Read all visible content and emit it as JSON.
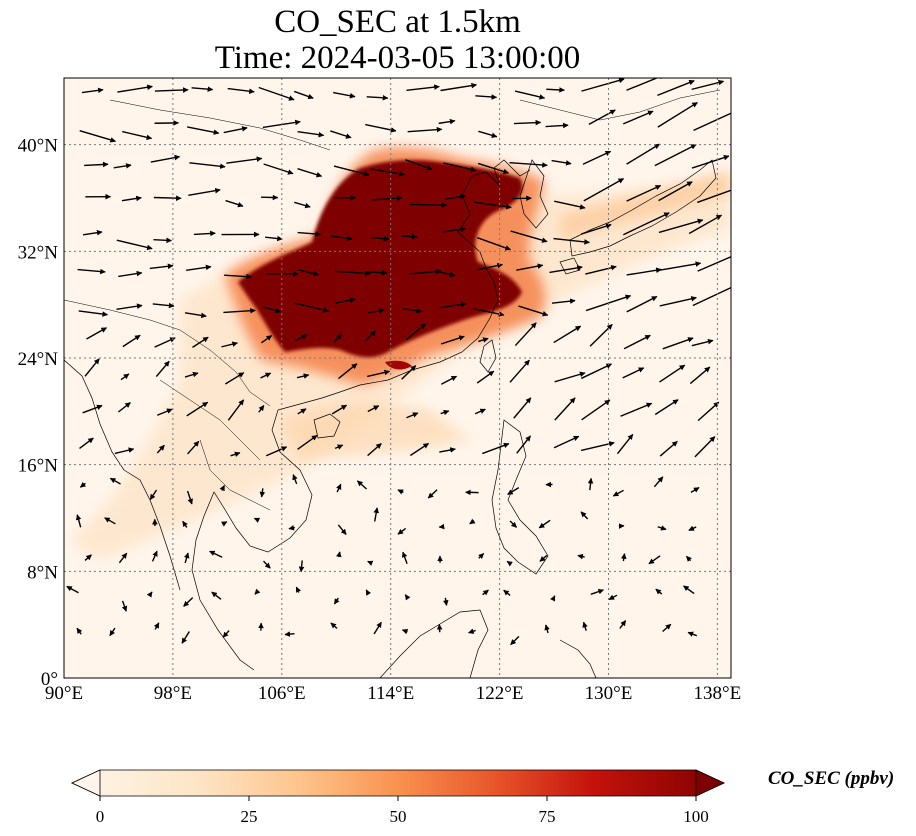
{
  "title": "CO_SEC at 1.5km",
  "subtitle": "Time: 2024-03-05 13:00:00",
  "map": {
    "lon_range": [
      90,
      139
    ],
    "lat_range": [
      0,
      45
    ],
    "lon_ticks": [
      90,
      98,
      106,
      114,
      122,
      130,
      138
    ],
    "lat_ticks": [
      0,
      8,
      16,
      24,
      32,
      40
    ],
    "lon_tick_labels": [
      "90°E",
      "98°E",
      "106°E",
      "114°E",
      "122°E",
      "130°E",
      "138°E"
    ],
    "lat_tick_labels": [
      "0°",
      "8°N",
      "16°N",
      "24°N",
      "32°N",
      "40°N"
    ],
    "gridlines": true
  },
  "colorbar": {
    "label": "CO_SEC (ppbv)",
    "ticks": [
      "0",
      "25",
      "50",
      "75",
      "100"
    ],
    "min": 0,
    "max": 100,
    "extend": "both",
    "colormap": [
      "#fff5eb",
      "#fee6ce",
      "#fdd0a2",
      "#fdae6b",
      "#fd8d3c",
      "#f16913",
      "#d94801",
      "#a63603",
      "#7f2704"
    ]
  },
  "field": {
    "plume_color": "#7f0000",
    "high_region": "Eastern China (approx. 102–127°E, 25–38°N) exceeding 100 ppbv"
  }
}
